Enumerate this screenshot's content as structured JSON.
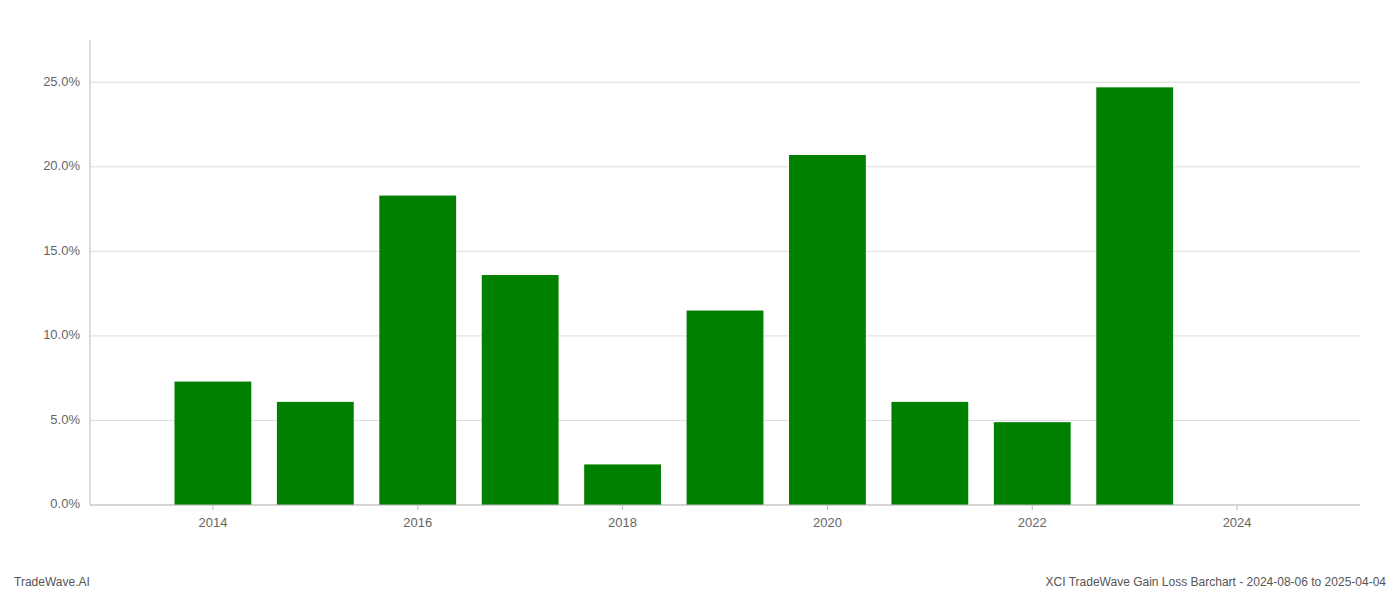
{
  "chart_data": {
    "type": "bar",
    "x": [
      2014,
      2015,
      2016,
      2017,
      2018,
      2019,
      2020,
      2021,
      2022,
      2023
    ],
    "values": [
      7.3,
      6.1,
      18.3,
      13.6,
      2.4,
      11.5,
      20.7,
      6.1,
      4.9,
      24.7
    ],
    "color": "#008000",
    "xlim": [
      2012.8,
      2025.2
    ],
    "xticks": [
      2014,
      2016,
      2018,
      2020,
      2022,
      2024
    ],
    "ylim": [
      0,
      27.5
    ],
    "yticks": [
      {
        "value": 0.0,
        "label": "0.0%"
      },
      {
        "value": 5.0,
        "label": "5.0%"
      },
      {
        "value": 10.0,
        "label": "10.0%"
      },
      {
        "value": 15.0,
        "label": "15.0%"
      },
      {
        "value": 20.0,
        "label": "20.0%"
      },
      {
        "value": 25.0,
        "label": "25.0%"
      }
    ],
    "grid": true,
    "annotations": [
      "TradeWave.AI",
      "XCI TradeWave Gain Loss Barchart - 2024-08-06 to 2025-04-04"
    ]
  }
}
